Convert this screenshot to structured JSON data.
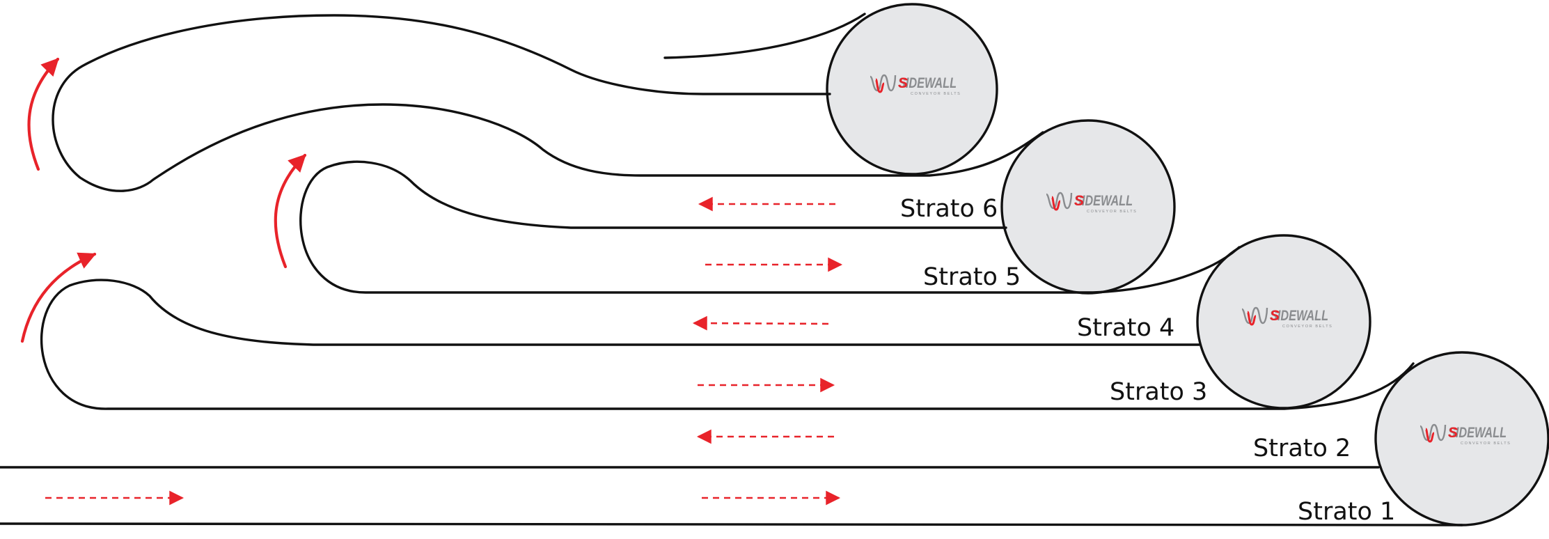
{
  "colors": {
    "belt": "#111111",
    "arrow": "#e8232a",
    "roller_fill": "#e6e7e9",
    "roller_stroke": "#111111",
    "logo_gray": "#8a8c8f",
    "logo_red": "#e8232a"
  },
  "layers": [
    {
      "label": "Strato 1",
      "flow": "right"
    },
    {
      "label": "Strato 2",
      "flow": "left"
    },
    {
      "label": "Strato 3",
      "flow": "right"
    },
    {
      "label": "Strato 4",
      "flow": "left"
    },
    {
      "label": "Strato 5",
      "flow": "right"
    },
    {
      "label": "Strato 6",
      "flow": "left"
    }
  ],
  "rollers": [
    {
      "logo_text": "SIDEWALL",
      "logo_subtext": "CONVEYOR BELTS",
      "icon": "sidewall-logo-icon"
    },
    {
      "logo_text": "SIDEWALL",
      "logo_subtext": "CONVEYOR BELTS",
      "icon": "sidewall-logo-icon"
    },
    {
      "logo_text": "SIDEWALL",
      "logo_subtext": "CONVEYOR BELTS",
      "icon": "sidewall-logo-icon"
    },
    {
      "logo_text": "SIDEWALL",
      "logo_subtext": "CONVEYOR BELTS",
      "icon": "sidewall-logo-icon"
    }
  ],
  "icons": {
    "flow_arrow": "dashed-arrow-icon",
    "turn_arrow": "curved-arrow-icon"
  }
}
